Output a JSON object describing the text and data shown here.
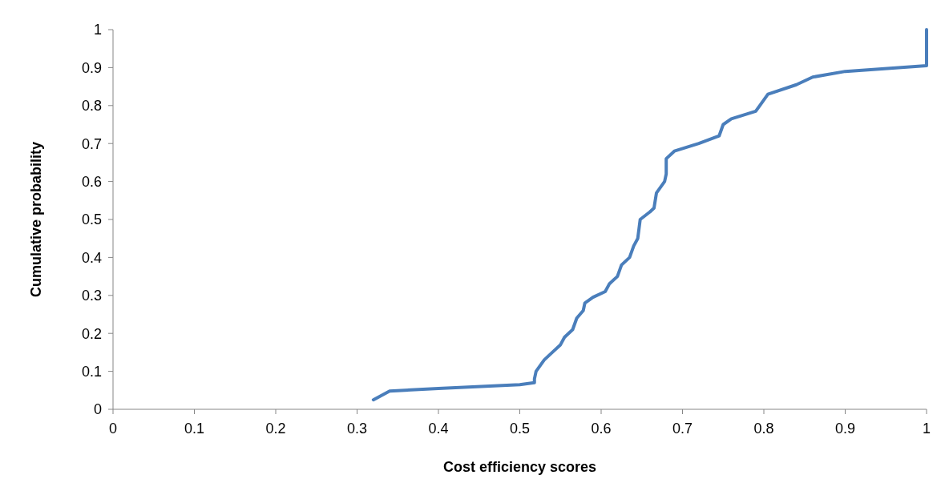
{
  "chart_data": {
    "type": "line",
    "xlabel": "Cost efficiency scores",
    "ylabel": "Cumulative probability",
    "xlim": [
      0,
      1
    ],
    "ylim": [
      0,
      1
    ],
    "xticks": [
      0,
      0.1,
      0.2,
      0.3,
      0.4,
      0.5,
      0.6,
      0.7,
      0.8,
      0.9,
      1
    ],
    "yticks": [
      0,
      0.1,
      0.2,
      0.3,
      0.4,
      0.5,
      0.6,
      0.7,
      0.8,
      0.9,
      1
    ],
    "grid": false,
    "marker": "none",
    "line_style": "solid",
    "series": [
      {
        "color": "#4a7ebb",
        "x": [
          0.32,
          0.34,
          0.4,
          0.5,
          0.518,
          0.518,
          0.52,
          0.53,
          0.54,
          0.55,
          0.555,
          0.565,
          0.57,
          0.578,
          0.58,
          0.59,
          0.605,
          0.61,
          0.62,
          0.625,
          0.635,
          0.64,
          0.645,
          0.648,
          0.66,
          0.665,
          0.668,
          0.678,
          0.68,
          0.68,
          0.69,
          0.72,
          0.745,
          0.75,
          0.76,
          0.79,
          0.795,
          0.805,
          0.84,
          0.86,
          0.9,
          1,
          1,
          1
        ],
        "values": [
          0.025,
          0.048,
          0.055,
          0.065,
          0.07,
          0.08,
          0.1,
          0.13,
          0.15,
          0.17,
          0.19,
          0.21,
          0.24,
          0.26,
          0.28,
          0.295,
          0.31,
          0.33,
          0.35,
          0.38,
          0.4,
          0.43,
          0.45,
          0.5,
          0.52,
          0.53,
          0.57,
          0.6,
          0.62,
          0.66,
          0.68,
          0.7,
          0.72,
          0.75,
          0.765,
          0.785,
          0.8,
          0.83,
          0.855,
          0.875,
          0.89,
          0.905,
          0.93,
          1
        ]
      }
    ]
  }
}
